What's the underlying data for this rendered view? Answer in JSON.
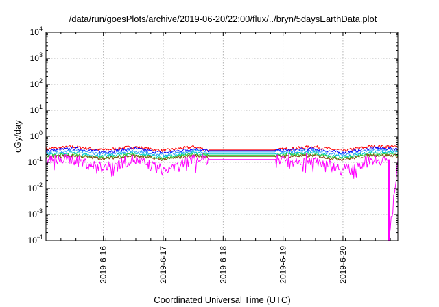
{
  "chart_data": {
    "type": "line",
    "title": "/data/run/goesPlots/archive/2019-06-20/22:00/flux/../bryn/5daysEarthData.plot",
    "xlabel": "Coordinated Universal Time (UTC)",
    "ylabel": "cGy/day",
    "yscale": "log",
    "xlim": [
      "2019-06-15 01:00",
      "2019-06-20 22:00"
    ],
    "ylim": [
      0.0001,
      10000
    ],
    "x_ticks": [
      "2019-6-16",
      "2019-6-17",
      "2019-6-18",
      "2019-6-19",
      "2019-6-20"
    ],
    "y_ticks": [
      {
        "base": "10",
        "exp": "-4"
      },
      {
        "base": "10",
        "exp": "-3"
      },
      {
        "base": "10",
        "exp": "-2"
      },
      {
        "base": "10",
        "exp": "-1"
      },
      {
        "base": "10",
        "exp": "0"
      },
      {
        "base": "10",
        "exp": "1"
      },
      {
        "base": "10",
        "exp": "2"
      },
      {
        "base": "10",
        "exp": "3"
      },
      {
        "base": "10",
        "exp": "4"
      }
    ],
    "data_gap": [
      "2019-06-17 18:00",
      "2019-06-18 21:00"
    ],
    "grid": true,
    "legend": "none",
    "series": [
      {
        "color": "#ff0000",
        "base": 0.38,
        "x": [
          "2019-06-15 01:00",
          "2019-06-15 12:00",
          "2019-06-16 00:00",
          "2019-06-16 12:00",
          "2019-06-17 00:00",
          "2019-06-17 12:00",
          "2019-06-17 18:00",
          "2019-06-18 21:00",
          "2019-06-19 12:00",
          "2019-06-20 00:00",
          "2019-06-20 12:00",
          "2019-06-20 22:00"
        ],
        "y": [
          0.33,
          0.4,
          0.3,
          0.4,
          0.28,
          0.4,
          0.3,
          0.3,
          0.4,
          0.28,
          0.42,
          0.4
        ]
      },
      {
        "color": "#0000ff",
        "base": 0.32,
        "x": [
          "2019-06-15 01:00",
          "2019-06-15 12:00",
          "2019-06-16 00:00",
          "2019-06-16 12:00",
          "2019-06-17 00:00",
          "2019-06-17 12:00",
          "2019-06-17 18:00",
          "2019-06-18 21:00",
          "2019-06-19 12:00",
          "2019-06-20 00:00",
          "2019-06-20 12:00",
          "2019-06-20 22:00"
        ],
        "y": [
          0.28,
          0.34,
          0.25,
          0.34,
          0.23,
          0.33,
          0.28,
          0.28,
          0.33,
          0.23,
          0.35,
          0.33
        ]
      },
      {
        "color": "#3399ff",
        "base": 0.27,
        "x": [
          "2019-06-15 01:00",
          "2019-06-15 12:00",
          "2019-06-16 00:00",
          "2019-06-16 12:00",
          "2019-06-17 00:00",
          "2019-06-17 12:00",
          "2019-06-17 18:00",
          "2019-06-18 21:00",
          "2019-06-19 12:00",
          "2019-06-20 00:00",
          "2019-06-20 12:00",
          "2019-06-20 22:00"
        ],
        "y": [
          0.24,
          0.28,
          0.21,
          0.28,
          0.19,
          0.28,
          0.25,
          0.25,
          0.28,
          0.19,
          0.29,
          0.28
        ]
      },
      {
        "color": "#00cccc",
        "base": 0.22,
        "x": [
          "2019-06-15 01:00",
          "2019-06-15 12:00",
          "2019-06-16 00:00",
          "2019-06-16 12:00",
          "2019-06-17 00:00",
          "2019-06-17 12:00",
          "2019-06-17 18:00",
          "2019-06-18 21:00",
          "2019-06-19 12:00",
          "2019-06-20 00:00",
          "2019-06-20 12:00",
          "2019-06-20 22:00"
        ],
        "y": [
          0.2,
          0.23,
          0.17,
          0.23,
          0.16,
          0.23,
          0.21,
          0.21,
          0.23,
          0.16,
          0.24,
          0.23
        ]
      },
      {
        "color": "#33cc33",
        "base": 0.19,
        "x": [
          "2019-06-15 01:00",
          "2019-06-15 12:00",
          "2019-06-16 00:00",
          "2019-06-16 12:00",
          "2019-06-17 00:00",
          "2019-06-17 12:00",
          "2019-06-17 18:00",
          "2019-06-18 21:00",
          "2019-06-19 12:00",
          "2019-06-20 00:00",
          "2019-06-20 12:00",
          "2019-06-20 22:00"
        ],
        "y": [
          0.17,
          0.2,
          0.15,
          0.2,
          0.14,
          0.2,
          0.19,
          0.19,
          0.2,
          0.14,
          0.21,
          0.2
        ]
      },
      {
        "color": "#8b4513",
        "base": 0.17,
        "x": [
          "2019-06-15 01:00",
          "2019-06-15 12:00",
          "2019-06-16 00:00",
          "2019-06-16 12:00",
          "2019-06-17 00:00",
          "2019-06-17 12:00",
          "2019-06-17 18:00",
          "2019-06-18 21:00",
          "2019-06-19 12:00",
          "2019-06-20 00:00",
          "2019-06-20 12:00",
          "2019-06-20 22:00"
        ],
        "y": [
          0.16,
          0.18,
          0.14,
          0.18,
          0.13,
          0.18,
          0.17,
          0.17,
          0.18,
          0.13,
          0.19,
          0.18
        ]
      },
      {
        "color": "#ff00ff",
        "base": 0.14,
        "x": [
          "2019-06-15 01:00",
          "2019-06-15 12:00",
          "2019-06-16 00:00",
          "2019-06-16 12:00",
          "2019-06-17 00:00",
          "2019-06-17 12:00",
          "2019-06-17 18:00",
          "2019-06-18 21:00",
          "2019-06-19 12:00",
          "2019-06-20 00:00",
          "2019-06-20 12:00",
          "2019-06-20 18:00",
          "2019-06-20 18:30",
          "2019-06-20 22:00"
        ],
        "y": [
          0.12,
          0.13,
          0.06,
          0.13,
          0.05,
          0.13,
          0.13,
          0.13,
          0.13,
          0.05,
          0.13,
          0.13,
          0.0001,
          0.13
        ]
      }
    ]
  }
}
